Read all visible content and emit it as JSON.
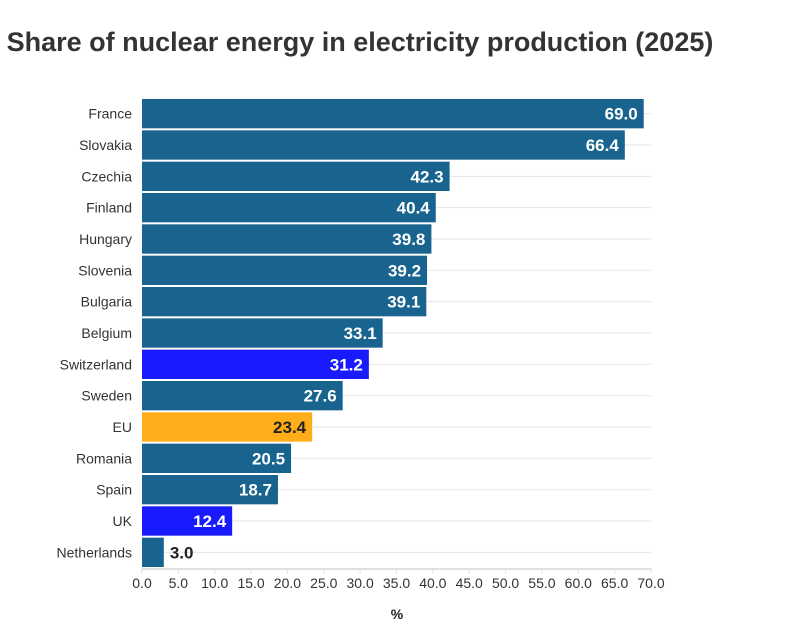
{
  "chart_data": {
    "type": "bar",
    "orientation": "horizontal",
    "title": "Share of nuclear energy in electricity production (2025)",
    "xlabel": "%",
    "ylabel": "",
    "xlim": [
      0,
      70
    ],
    "xticks": [
      "0.0",
      "5.0",
      "10.0",
      "15.0",
      "20.0",
      "25.0",
      "30.0",
      "35.0",
      "40.0",
      "45.0",
      "50.0",
      "55.0",
      "60.0",
      "65.0",
      "70.0"
    ],
    "grid": true,
    "categories": [
      "France",
      "Slovakia",
      "Czechia",
      "Finland",
      "Hungary",
      "Slovenia",
      "Bulgaria",
      "Belgium",
      "Switzerland",
      "Sweden",
      "EU",
      "Romania",
      "Spain",
      "UK",
      "Netherlands"
    ],
    "values": [
      69.0,
      66.4,
      42.3,
      40.4,
      39.8,
      39.2,
      39.1,
      33.1,
      31.2,
      27.6,
      23.4,
      20.5,
      18.7,
      12.4,
      3.0
    ],
    "value_labels": [
      "69.0",
      "66.4",
      "42.3",
      "40.4",
      "39.8",
      "39.2",
      "39.1",
      "33.1",
      "31.2",
      "27.6",
      "23.4",
      "20.5",
      "18.7",
      "12.4",
      "3.0"
    ],
    "colors": {
      "default": "#19648f",
      "highlight_non_eu": "#1a1aff",
      "eu": "#ffae1a"
    },
    "bar_colors": [
      "default",
      "default",
      "default",
      "default",
      "default",
      "default",
      "default",
      "default",
      "highlight_non_eu",
      "default",
      "eu",
      "default",
      "default",
      "highlight_non_eu",
      "default"
    ]
  }
}
